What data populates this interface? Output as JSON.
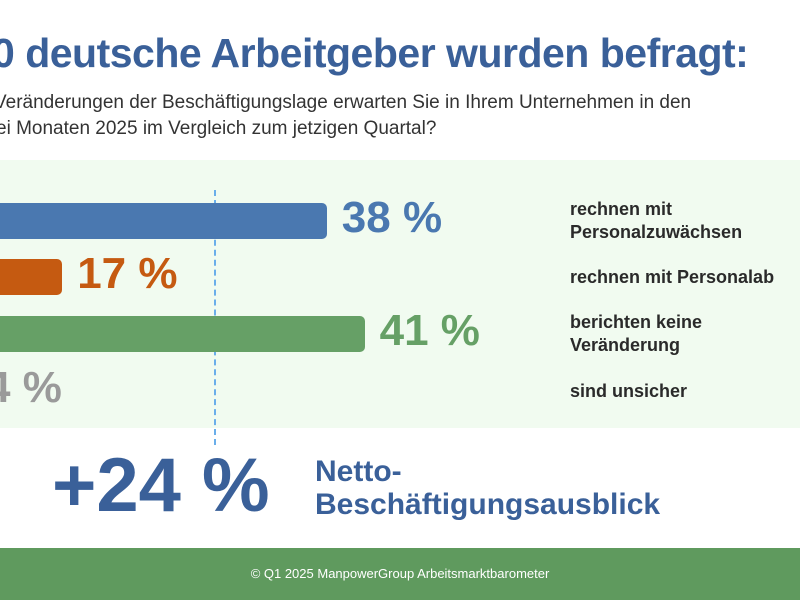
{
  "title": "0 deutsche Arbeitgeber wurden befragt:",
  "question_line1": "Veränderungen der Beschäftigungslage erwarten Sie in Ihrem Unternehmen in den",
  "question_line2": "ei Monaten 2025 im Vergleich zum jetzigen Quartal?",
  "chart_data": {
    "type": "bar",
    "orientation": "horizontal",
    "categories": [
      "rechnen mit Personalzuwächsen",
      "rechnen mit Personalabbau",
      "berichten keine Veränderung",
      "sind unsicher"
    ],
    "values": [
      38,
      17,
      41,
      4
    ],
    "value_labels": [
      "38 %",
      "17 %",
      "41 %",
      "4 %"
    ],
    "label_lines": [
      [
        "rechnen mit",
        "Personalzuwächsen"
      ],
      [
        "rechnen mit Personalab"
      ],
      [
        "berichten keine",
        "Veränderung"
      ],
      [
        "sind unsicher"
      ]
    ],
    "colors": [
      "#4a78b0",
      "#c55a11",
      "#66a066",
      "#9a9a9a"
    ]
  },
  "net": {
    "value": "+24 %",
    "label_line1": "Netto-",
    "label_line2": "Beschäftigungsausblick"
  },
  "footer": "© Q1 2025 ManpowerGroup Arbeitsmarktbarometer"
}
